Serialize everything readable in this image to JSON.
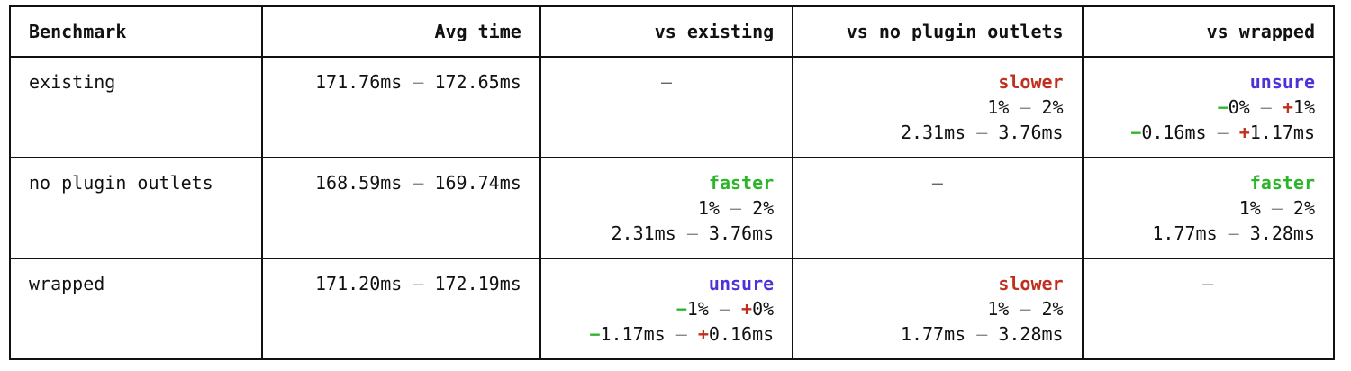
{
  "headers": [
    "Benchmark",
    "Avg time",
    "vs existing",
    "vs no plugin outlets",
    "vs wrapped"
  ],
  "dash": "–",
  "range_sep": "–",
  "colors": {
    "slower": "#c0301e",
    "faster": "#2db52a",
    "unsure": "#4b33d9",
    "minus_sign": "#2db52a",
    "plus_sign": "#c0301e"
  },
  "rows": [
    {
      "name": "existing",
      "avg": {
        "lo": "171.76ms",
        "hi": "172.65ms"
      },
      "cmp": [
        {
          "kind": "self"
        },
        {
          "kind": "simple",
          "verdict": "slower",
          "pct": {
            "lo": "1%",
            "hi": "2%"
          },
          "ms": {
            "lo": "2.31ms",
            "hi": "3.76ms"
          }
        },
        {
          "kind": "signed",
          "verdict": "unsure",
          "pct": {
            "lo_sign": "−",
            "lo": "0%",
            "hi_sign": "+",
            "hi": "1%"
          },
          "ms": {
            "lo_sign": "−",
            "lo": "0.16ms",
            "hi_sign": "+",
            "hi": "1.17ms"
          }
        }
      ]
    },
    {
      "name": "no plugin outlets",
      "avg": {
        "lo": "168.59ms",
        "hi": "169.74ms"
      },
      "cmp": [
        {
          "kind": "simple",
          "verdict": "faster",
          "pct": {
            "lo": "1%",
            "hi": "2%"
          },
          "ms": {
            "lo": "2.31ms",
            "hi": "3.76ms"
          }
        },
        {
          "kind": "self"
        },
        {
          "kind": "simple",
          "verdict": "faster",
          "pct": {
            "lo": "1%",
            "hi": "2%"
          },
          "ms": {
            "lo": "1.77ms",
            "hi": "3.28ms"
          }
        }
      ]
    },
    {
      "name": "wrapped",
      "avg": {
        "lo": "171.20ms",
        "hi": "172.19ms"
      },
      "cmp": [
        {
          "kind": "signed",
          "verdict": "unsure",
          "pct": {
            "lo_sign": "−",
            "lo": "1%",
            "hi_sign": "+",
            "hi": "0%"
          },
          "ms": {
            "lo_sign": "−",
            "lo": "1.17ms",
            "hi_sign": "+",
            "hi": "0.16ms"
          }
        },
        {
          "kind": "simple",
          "verdict": "slower",
          "pct": {
            "lo": "1%",
            "hi": "2%"
          },
          "ms": {
            "lo": "1.77ms",
            "hi": "3.28ms"
          }
        },
        {
          "kind": "self"
        }
      ]
    }
  ]
}
